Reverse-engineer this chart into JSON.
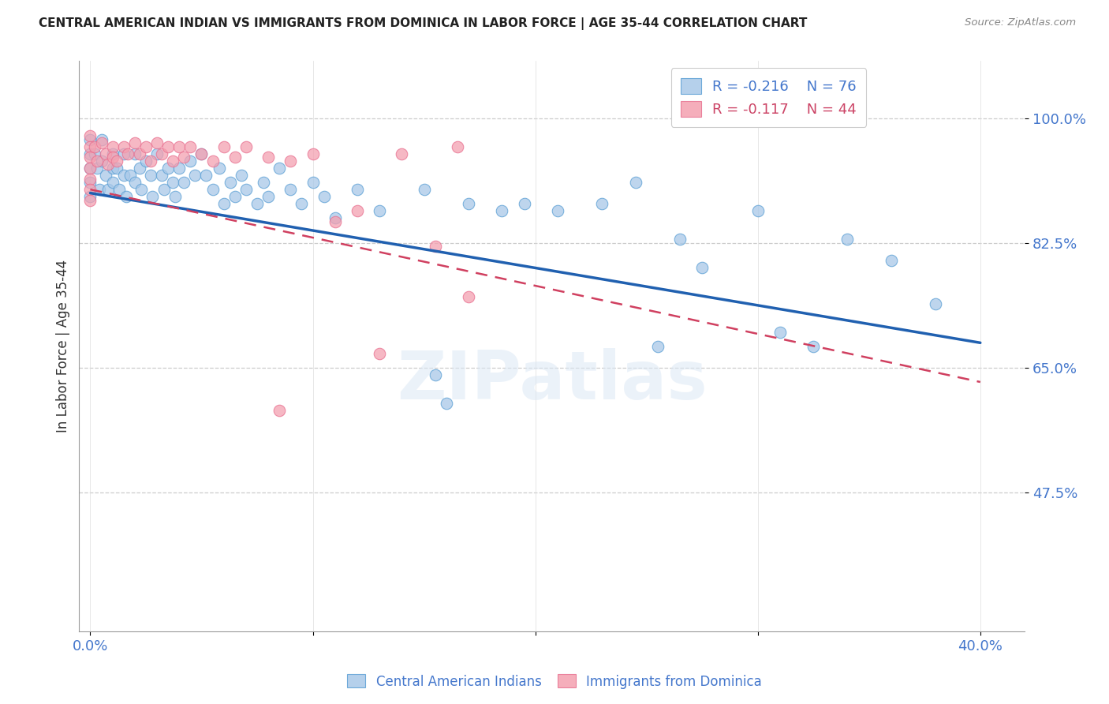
{
  "title": "CENTRAL AMERICAN INDIAN VS IMMIGRANTS FROM DOMINICA IN LABOR FORCE | AGE 35-44 CORRELATION CHART",
  "source": "Source: ZipAtlas.com",
  "ylabel": "In Labor Force | Age 35-44",
  "xlim": [
    -0.005,
    0.42
  ],
  "ylim": [
    0.28,
    1.08
  ],
  "yticks": [
    0.475,
    0.65,
    0.825,
    1.0
  ],
  "ytick_labels": [
    "47.5%",
    "65.0%",
    "82.5%",
    "100.0%"
  ],
  "xticks": [
    0.0,
    0.1,
    0.2,
    0.3,
    0.4
  ],
  "xtick_labels": [
    "0.0%",
    "",
    "",
    "",
    "40.0%"
  ],
  "legend_blue_r": "-0.216",
  "legend_blue_n": "76",
  "legend_pink_r": "-0.117",
  "legend_pink_n": "44",
  "blue_color": "#a8c8e8",
  "pink_color": "#f4a0b0",
  "blue_edge_color": "#5a9fd4",
  "pink_edge_color": "#e87090",
  "blue_line_color": "#2060b0",
  "pink_line_color": "#d04060",
  "watermark": "ZIPatlas",
  "blue_scatter_x": [
    0.0,
    0.0,
    0.0,
    0.0,
    0.0,
    0.002,
    0.003,
    0.004,
    0.005,
    0.005,
    0.007,
    0.008,
    0.01,
    0.01,
    0.01,
    0.012,
    0.013,
    0.015,
    0.015,
    0.016,
    0.018,
    0.02,
    0.02,
    0.022,
    0.023,
    0.025,
    0.027,
    0.028,
    0.03,
    0.032,
    0.033,
    0.035,
    0.037,
    0.038,
    0.04,
    0.042,
    0.045,
    0.047,
    0.05,
    0.052,
    0.055,
    0.058,
    0.06,
    0.063,
    0.065,
    0.068,
    0.07,
    0.075,
    0.078,
    0.08,
    0.085,
    0.09,
    0.095,
    0.1,
    0.105,
    0.11,
    0.12,
    0.13,
    0.15,
    0.155,
    0.16,
    0.17,
    0.185,
    0.195,
    0.21,
    0.23,
    0.245,
    0.255,
    0.265,
    0.275,
    0.3,
    0.31,
    0.325,
    0.34,
    0.36,
    0.38
  ],
  "blue_scatter_y": [
    0.97,
    0.95,
    0.93,
    0.91,
    0.89,
    0.95,
    0.93,
    0.9,
    0.97,
    0.94,
    0.92,
    0.9,
    0.95,
    0.93,
    0.91,
    0.93,
    0.9,
    0.95,
    0.92,
    0.89,
    0.92,
    0.95,
    0.91,
    0.93,
    0.9,
    0.94,
    0.92,
    0.89,
    0.95,
    0.92,
    0.9,
    0.93,
    0.91,
    0.89,
    0.93,
    0.91,
    0.94,
    0.92,
    0.95,
    0.92,
    0.9,
    0.93,
    0.88,
    0.91,
    0.89,
    0.92,
    0.9,
    0.88,
    0.91,
    0.89,
    0.93,
    0.9,
    0.88,
    0.91,
    0.89,
    0.86,
    0.9,
    0.87,
    0.9,
    0.64,
    0.6,
    0.88,
    0.87,
    0.88,
    0.87,
    0.88,
    0.91,
    0.68,
    0.83,
    0.79,
    0.87,
    0.7,
    0.68,
    0.83,
    0.8,
    0.74
  ],
  "pink_scatter_x": [
    0.0,
    0.0,
    0.0,
    0.0,
    0.0,
    0.0,
    0.0,
    0.002,
    0.003,
    0.005,
    0.007,
    0.008,
    0.01,
    0.01,
    0.012,
    0.015,
    0.017,
    0.02,
    0.022,
    0.025,
    0.027,
    0.03,
    0.032,
    0.035,
    0.037,
    0.04,
    0.042,
    0.045,
    0.05,
    0.055,
    0.06,
    0.065,
    0.07,
    0.08,
    0.085,
    0.09,
    0.1,
    0.11,
    0.12,
    0.13,
    0.14,
    0.155,
    0.165,
    0.17
  ],
  "pink_scatter_y": [
    0.975,
    0.96,
    0.945,
    0.93,
    0.915,
    0.9,
    0.885,
    0.96,
    0.94,
    0.965,
    0.95,
    0.935,
    0.96,
    0.945,
    0.94,
    0.96,
    0.95,
    0.965,
    0.95,
    0.96,
    0.94,
    0.965,
    0.95,
    0.96,
    0.94,
    0.96,
    0.945,
    0.96,
    0.95,
    0.94,
    0.96,
    0.945,
    0.96,
    0.945,
    0.59,
    0.94,
    0.95,
    0.855,
    0.87,
    0.67,
    0.95,
    0.82,
    0.96,
    0.75
  ],
  "blue_trend_x0": 0.0,
  "blue_trend_x1": 0.4,
  "blue_trend_y0": 0.895,
  "blue_trend_y1": 0.685,
  "pink_trend_x0": 0.0,
  "pink_trend_x1": 0.4,
  "pink_trend_y0": 0.9,
  "pink_trend_y1": 0.63
}
